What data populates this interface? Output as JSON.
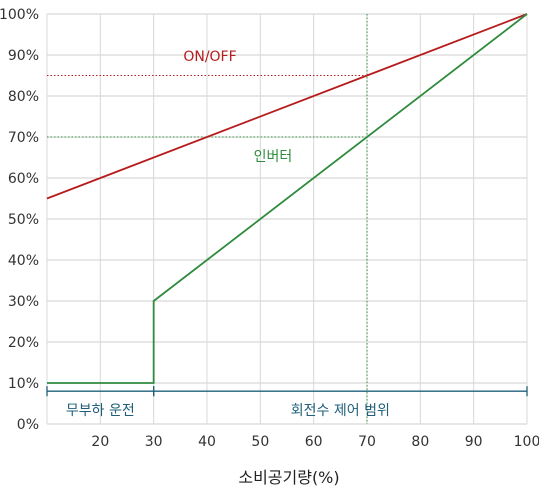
{
  "chart_data": {
    "type": "line",
    "title": "",
    "xlabel": "소비공기량(%)",
    "ylabel": "",
    "xlim": [
      10,
      100
    ],
    "ylim": [
      0,
      100
    ],
    "x_ticks": [
      "20",
      "30",
      "40",
      "50",
      "60",
      "70",
      "80",
      "90",
      "100"
    ],
    "y_ticks": [
      "0%",
      "10%",
      "20%",
      "30%",
      "40%",
      "50%",
      "60%",
      "70%",
      "80%",
      "90%",
      "100%"
    ],
    "grid": true,
    "series": [
      {
        "name": "ON/OFF",
        "color": "#b71c1c",
        "points": [
          [
            10,
            55
          ],
          [
            100,
            100
          ]
        ]
      },
      {
        "name": "인버터",
        "color": "#2e8b3e",
        "points": [
          [
            10,
            10
          ],
          [
            30,
            10
          ],
          [
            30,
            30
          ],
          [
            100,
            100
          ]
        ]
      }
    ],
    "reference_lines": [
      {
        "x": 70,
        "y_to": 85,
        "color": "#b71c1c"
      },
      {
        "x": 70,
        "y_to": 70,
        "color": "#2e8b3e"
      }
    ],
    "ranges": [
      {
        "label": "무부하 운전",
        "x_from": 10,
        "x_to": 30,
        "y": 8,
        "color": "#1f5f7a"
      },
      {
        "label": "회전수 제어 범위",
        "x_from": 30,
        "x_to": 100,
        "y": 8,
        "color": "#1f5f7a"
      }
    ],
    "vertical_marker": {
      "x": 70,
      "color": "#2e8b3e"
    }
  }
}
